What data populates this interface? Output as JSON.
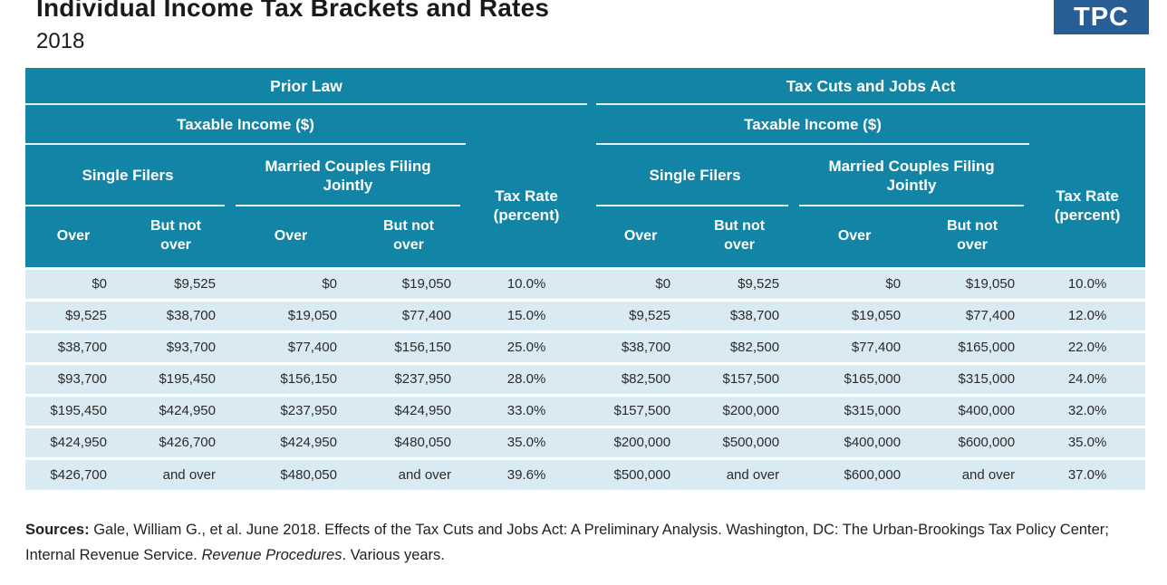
{
  "page": {
    "title": "Individual Income Tax Brackets and Rates",
    "subtitle": "2018",
    "logo_text": "TPC"
  },
  "colors": {
    "header_teal": "#1284A6",
    "row_blue": "#D9EAF3",
    "logo_navy": "#275E96",
    "header_underline": "#E2F2F7"
  },
  "table": {
    "group_headers": {
      "prior": "Prior Law",
      "tcja": "Tax Cuts and Jobs Act"
    },
    "income_header": "Taxable Income ($)",
    "sub_headers": {
      "single": "Single Filers",
      "married": "Married Couples Filing Jointly",
      "rate": "Tax Rate (percent)"
    },
    "col_headers": {
      "over": "Over",
      "but_not_over": "But not over"
    }
  },
  "chart_data": {
    "type": "table",
    "title": "Individual Income Tax Brackets and Rates",
    "subtitle": "2018",
    "sections": [
      "Prior Law",
      "Tax Cuts and Jobs Act"
    ],
    "column_group_per_section": "Taxable Income ($)",
    "columns_per_section": [
      "Single Filers: Over",
      "Single Filers: But not over",
      "Married Couples Filing Jointly: Over",
      "Married Couples Filing Jointly: But not over",
      "Tax Rate (percent)"
    ],
    "rows": [
      [
        "$0",
        "$9,525",
        "$0",
        "$19,050",
        "10.0%",
        "$0",
        "$9,525",
        "$0",
        "$19,050",
        "10.0%"
      ],
      [
        "$9,525",
        "$38,700",
        "$19,050",
        "$77,400",
        "15.0%",
        "$9,525",
        "$38,700",
        "$19,050",
        "$77,400",
        "12.0%"
      ],
      [
        "$38,700",
        "$93,700",
        "$77,400",
        "$156,150",
        "25.0%",
        "$38,700",
        "$82,500",
        "$77,400",
        "$165,000",
        "22.0%"
      ],
      [
        "$93,700",
        "$195,450",
        "$156,150",
        "$237,950",
        "28.0%",
        "$82,500",
        "$157,500",
        "$165,000",
        "$315,000",
        "24.0%"
      ],
      [
        "$195,450",
        "$424,950",
        "$237,950",
        "$424,950",
        "33.0%",
        "$157,500",
        "$200,000",
        "$315,000",
        "$400,000",
        "32.0%"
      ],
      [
        "$424,950",
        "$426,700",
        "$424,950",
        "$480,050",
        "35.0%",
        "$200,000",
        "$500,000",
        "$400,000",
        "$600,000",
        "35.0%"
      ],
      [
        "$426,700",
        "and over",
        "$480,050",
        "and over",
        "39.6%",
        "$500,000",
        "and over",
        "$600,000",
        "and over",
        "37.0%"
      ]
    ]
  },
  "sources": {
    "label": "Sources:",
    "text_before_italic": " Gale, William G., et al. June 2018. Effects of the Tax Cuts and Jobs Act: A Preliminary Analysis. Washington, DC: The Urban-Brookings Tax Policy Center; Internal Revenue Service. ",
    "italic": "Revenue Procedures",
    "text_after_italic": ". Various years."
  }
}
